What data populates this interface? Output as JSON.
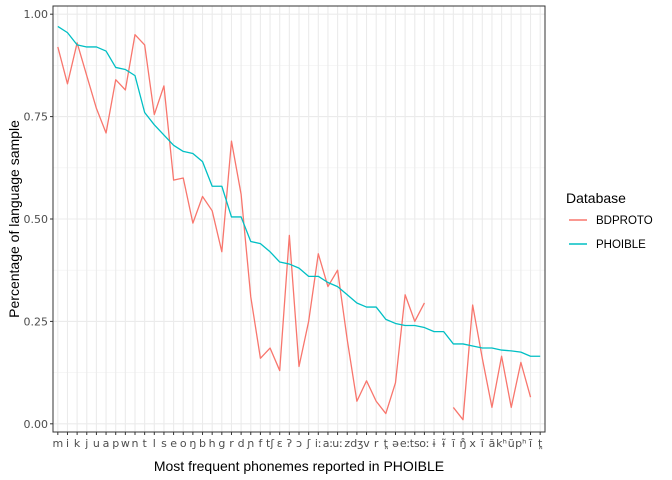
{
  "chart_data": {
    "type": "line",
    "xlabel": "Most frequent phonemes reported in PHOIBLE",
    "ylabel": "Percentage of language sample",
    "ylim": [
      -0.02,
      1.02
    ],
    "yticks": [
      0.0,
      0.25,
      0.5,
      0.75,
      1.0
    ],
    "ytick_labels": [
      "0.00",
      "0.25",
      "0.50",
      "0.75",
      "1.00"
    ],
    "grid": true,
    "legend": {
      "title": "Database",
      "placement": "right"
    },
    "categories": [
      "m",
      "i",
      "k",
      "j",
      "u",
      "a",
      "p",
      "w",
      "n",
      "t",
      "l",
      "s",
      "e",
      "o",
      "ŋ",
      "b",
      "h",
      "g",
      "r",
      "d",
      "ɲ",
      "f",
      "tʃ",
      "ɛ",
      "ʔ",
      "ɔ",
      "ʃ",
      "iː",
      "aː",
      "uː",
      "z",
      "dʒ",
      "v",
      "r",
      "t̪",
      "ə",
      "eː",
      "ts",
      "oː",
      "ɨ",
      "ɨ̃",
      "ĩ",
      "ŋ̊",
      "x",
      "ĩ",
      "ã",
      "kʰ",
      "ũ",
      "pʰ",
      "ĩ",
      "t̪"
    ],
    "category_labels": [
      "m",
      "i",
      "k",
      "j",
      "u",
      "a",
      "p",
      "w",
      "n",
      "t",
      "l",
      "s",
      "e",
      "o",
      "ŋ",
      "b",
      "h",
      "g",
      "r",
      "d",
      "ɲ",
      "f",
      "tʃ",
      "ɛ",
      "ʔ",
      "ɔ",
      "ʃ",
      "iː",
      "aː",
      "uː",
      "z",
      "dʒ",
      "v",
      "r",
      "t̪",
      "ə",
      "eː",
      "ts",
      "oː",
      "ɨ",
      "ɨ̃",
      "ĩ",
      "ŋ̊",
      "x",
      "ĩ",
      "ã",
      "kʰ",
      "ũ",
      "pʰ",
      "ĩ",
      "t̪"
    ],
    "series": [
      {
        "name": "BDPROTO",
        "color": "#F8766D",
        "values": [
          0.92,
          0.83,
          0.93,
          0.85,
          0.77,
          0.71,
          0.84,
          0.815,
          0.95,
          0.925,
          0.755,
          0.825,
          0.595,
          0.6,
          0.49,
          0.555,
          0.52,
          0.42,
          0.69,
          0.56,
          0.31,
          0.16,
          0.185,
          0.13,
          0.46,
          0.14,
          0.25,
          0.415,
          0.335,
          0.375,
          0.205,
          0.055,
          0.105,
          0.055,
          0.025,
          0.1,
          0.315,
          0.25,
          0.295,
          null,
          null,
          0.04,
          0.01,
          0.29,
          0.16,
          0.04,
          0.165,
          0.04,
          0.15,
          0.065,
          null
        ]
      },
      {
        "name": "PHOIBLE",
        "color": "#00BFC4",
        "values": [
          0.97,
          0.955,
          0.925,
          0.92,
          0.92,
          0.91,
          0.87,
          0.865,
          0.85,
          0.76,
          0.73,
          0.705,
          0.68,
          0.665,
          0.66,
          0.64,
          0.58,
          0.58,
          0.505,
          0.505,
          0.445,
          0.44,
          0.42,
          0.395,
          0.39,
          0.38,
          0.36,
          0.36,
          0.345,
          0.335,
          0.315,
          0.295,
          0.285,
          0.285,
          0.255,
          0.245,
          0.24,
          0.24,
          0.235,
          0.225,
          0.225,
          0.195,
          0.195,
          0.19,
          0.185,
          0.185,
          0.18,
          0.178,
          0.175,
          0.165,
          0.165
        ]
      }
    ]
  }
}
